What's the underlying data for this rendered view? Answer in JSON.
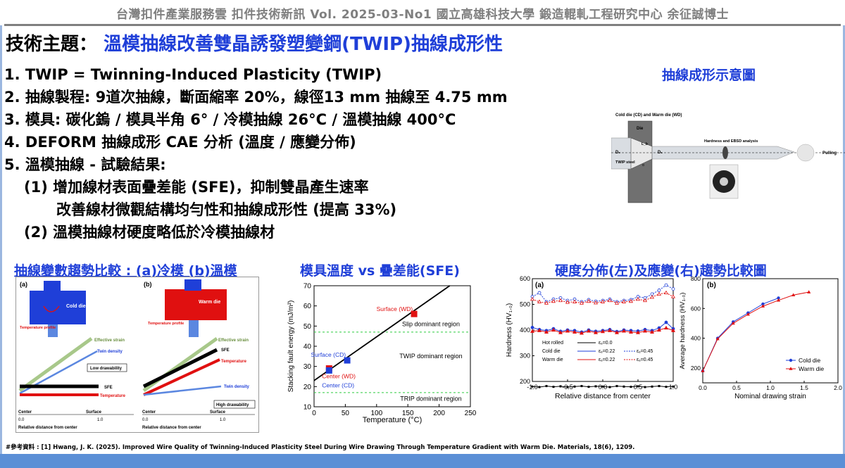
{
  "header": "台灣扣件產業服務雲  扣件技術新訊  Vol. 2025-03-No1  國立高雄科技大學  鍛造輥軋工程研究中心  余征誠博士",
  "topic": {
    "label": "技術主題：",
    "text": "溫模抽線改善雙晶誘發塑變鋼(TWIP)抽線成形性"
  },
  "points": [
    "1. TWIP = Twinning-Induced Plasticity (TWIP)",
    "2. 抽線製程: 9道次抽線，斷面縮率 20%，線徑13 mm 抽線至 4.75 mm",
    "3. 模具: 碳化鎢 / 模具半角 6° / 冷模抽線 26°C / 溫模抽線 400°C",
    "4. DEFORM 抽線成形 CAE 分析 (溫度 / 應變分佈)",
    "5. 溫模抽線 - 試驗結果:",
    "(1) 增加線材表面疊差能 (SFE)，抑制雙晶產生速率",
    "改善線材微觀結構均勻性和抽線成形性 (提高 33%)",
    "(2) 溫模抽線材硬度略低於冷模抽線材"
  ],
  "schematic": {
    "title": "抽線成形示意圖",
    "caption": "Cold die (CD) and Warm die (WD)",
    "die": "Die",
    "steel": "TWIP steel",
    "analysis": "Hardness and EBSD analysis",
    "pulling": "Pulling",
    "d0": "D₀",
    "d1": "D₁",
    "lb": "L_b",
    "alpha": "α"
  },
  "sections": {
    "s1": "抽線變數趨勢比較 : (a)冷模 (b)溫模",
    "s2": "模具溫度 vs 疊差能(SFE)",
    "s3": "硬度分佈(左)及應變(右)趨勢比較圖"
  },
  "trend": {
    "a": "(a)",
    "b": "(b)",
    "cold_die": "Cold die",
    "warm_die": "Warm die",
    "temp_profile": "Temperature profile",
    "effective_strain": "Effective strain",
    "twin_density": "Twin density",
    "low_drawability": "Low drawability",
    "high_drawability": "High drawability",
    "sfe": "SFE",
    "temperature": "Temperature",
    "center": "Center",
    "surface": "Surface",
    "xlabel": "Relative distance from center",
    "tick0": "0.0",
    "tick1": "1.0"
  },
  "colors": {
    "title_blue": "#1f3fd8",
    "cold": "#1f3fd8",
    "warm": "#e01010",
    "grid_green": "#2ecc40"
  },
  "chart_data": [
    {
      "type": "line",
      "title": "",
      "xlabel": "Temperature (°C)",
      "ylabel": "Stacking fault energy (mJ/m²)",
      "xlim": [
        0,
        250
      ],
      "ylim": [
        10,
        70
      ],
      "xticks": [
        0,
        50,
        100,
        150,
        200,
        250
      ],
      "yticks": [
        10,
        20,
        30,
        40,
        50,
        60,
        70
      ],
      "line": {
        "x": [
          0,
          217
        ],
        "y": [
          23,
          70
        ]
      },
      "thresholds": [
        47,
        17
      ],
      "regions": [
        "Slip dominant region",
        "TWIP dominant region",
        "TRIP dominant region"
      ],
      "points": [
        {
          "label": "Surface (WD)",
          "x": 160,
          "y": 56,
          "color": "#e01010"
        },
        {
          "label": "Surface (CD)",
          "x": 53,
          "y": 33,
          "color": "#1f3fd8"
        },
        {
          "label": "Center (WD)",
          "x": 24,
          "y": 29,
          "color": "#e01010"
        },
        {
          "label": "Center (CD)",
          "x": 24,
          "y": 28,
          "color": "#1f3fd8"
        }
      ]
    },
    {
      "type": "line",
      "panel": "(a)",
      "xlabel": "Relative distance from center",
      "ylabel": "Hardness (HV₁.₀)",
      "xlim": [
        -1.0,
        1.0
      ],
      "ylim": [
        200,
        600
      ],
      "xticks": [
        "-1.0",
        "-0.5",
        "0.0",
        "0.5",
        "1.0"
      ],
      "yticks": [
        200,
        300,
        400,
        500,
        600
      ],
      "x": [
        -1.0,
        -0.9,
        -0.8,
        -0.7,
        -0.6,
        -0.5,
        -0.4,
        -0.3,
        -0.2,
        -0.1,
        0.0,
        0.1,
        0.2,
        0.3,
        0.4,
        0.5,
        0.6,
        0.7,
        0.8,
        0.9,
        1.0
      ],
      "legend": {
        "hot_rolled": "Hot rolled",
        "cold": "Cold die",
        "warm": "Warm die",
        "e0": "εₑ=0.0",
        "e22": "εₑ=0.22",
        "e45": "εₑ=0.45"
      },
      "series": [
        {
          "name": "Hot rolled",
          "color": "#000000",
          "values": [
            180,
            178,
            182,
            179,
            181,
            178,
            180,
            182,
            179,
            181,
            180,
            178,
            182,
            180,
            179,
            181,
            178,
            180,
            182,
            179,
            180
          ]
        },
        {
          "name": "Cold die εₑ=0.22",
          "color": "#1f3fd8",
          "values": [
            410,
            402,
            398,
            405,
            395,
            400,
            398,
            392,
            400,
            395,
            398,
            402,
            394,
            400,
            398,
            396,
            402,
            398,
            408,
            430,
            405
          ]
        },
        {
          "name": "Cold die εₑ=0.45",
          "color": "#1f3fd8",
          "values": [
            530,
            545,
            510,
            520,
            525,
            515,
            520,
            510,
            518,
            512,
            515,
            520,
            510,
            515,
            518,
            530,
            525,
            540,
            555,
            575,
            560
          ]
        },
        {
          "name": "Warm die εₑ=0.22",
          "color": "#e01010",
          "values": [
            395,
            398,
            392,
            400,
            390,
            396,
            392,
            388,
            396,
            390,
            394,
            398,
            390,
            396,
            392,
            390,
            396,
            392,
            400,
            408,
            398
          ]
        },
        {
          "name": "Warm die εₑ=0.45",
          "color": "#e01010",
          "values": [
            520,
            510,
            505,
            512,
            515,
            508,
            510,
            505,
            512,
            506,
            510,
            515,
            505,
            510,
            512,
            520,
            515,
            528,
            540,
            545,
            530
          ]
        }
      ]
    },
    {
      "type": "line",
      "panel": "(b)",
      "xlabel": "Nominal drawing strain",
      "ylabel": "Average hardness (HV₁.₀)",
      "xlim": [
        0.0,
        2.0
      ],
      "ylim": [
        100,
        800
      ],
      "xticks": [
        "0.0",
        "0.5",
        "1.0",
        "1.5",
        "2.0"
      ],
      "yticks": [
        200,
        400,
        600,
        800
      ],
      "series": [
        {
          "name": "Cold die",
          "color": "#1f3fd8",
          "x": [
            0,
            0.22,
            0.45,
            0.67,
            0.89,
            1.12
          ],
          "values": [
            180,
            400,
            510,
            570,
            630,
            670
          ]
        },
        {
          "name": "Warm die",
          "color": "#e01010",
          "x": [
            0,
            0.22,
            0.45,
            0.67,
            0.89,
            1.12,
            1.34,
            1.57
          ],
          "values": [
            180,
            395,
            500,
            560,
            615,
            655,
            690,
            710
          ]
        }
      ]
    }
  ],
  "reference": "#參考資料 : [1] Hwang, J. K. (2025). Improved Wire Quality of Twinning-Induced Plasticity Steel During Wire Drawing Through Temperature Gradient with Warm Die. Materials, 18(6), 1209."
}
